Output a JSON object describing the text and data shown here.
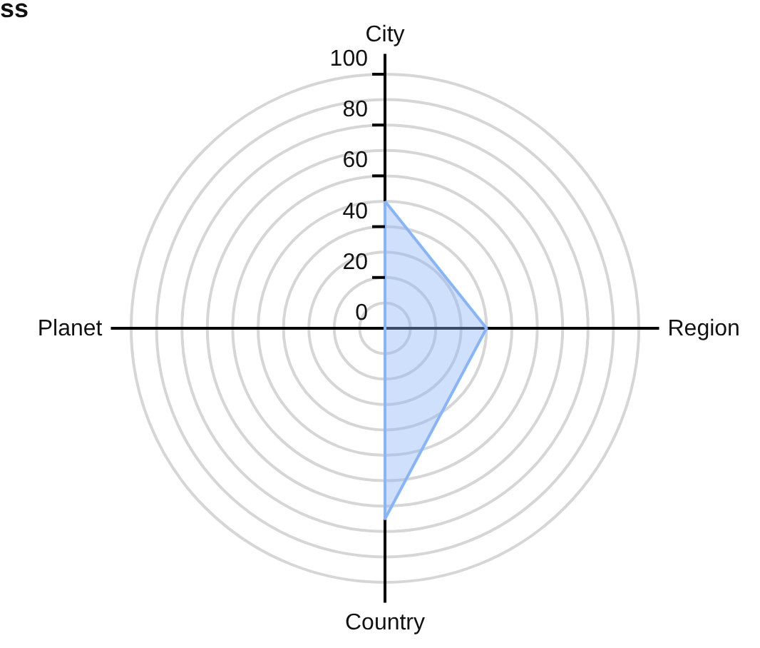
{
  "chart_data": {
    "type": "radar",
    "title": "ss",
    "categories": [
      "City",
      "Region",
      "Country",
      "Planet"
    ],
    "series": [
      {
        "color": "#8ab4f8",
        "values": [
          50,
          40,
          75,
          0
        ]
      }
    ],
    "ylim": [
      0,
      100
    ],
    "yticks": [
      0,
      20,
      40,
      60,
      80,
      100
    ],
    "grid": true
  }
}
